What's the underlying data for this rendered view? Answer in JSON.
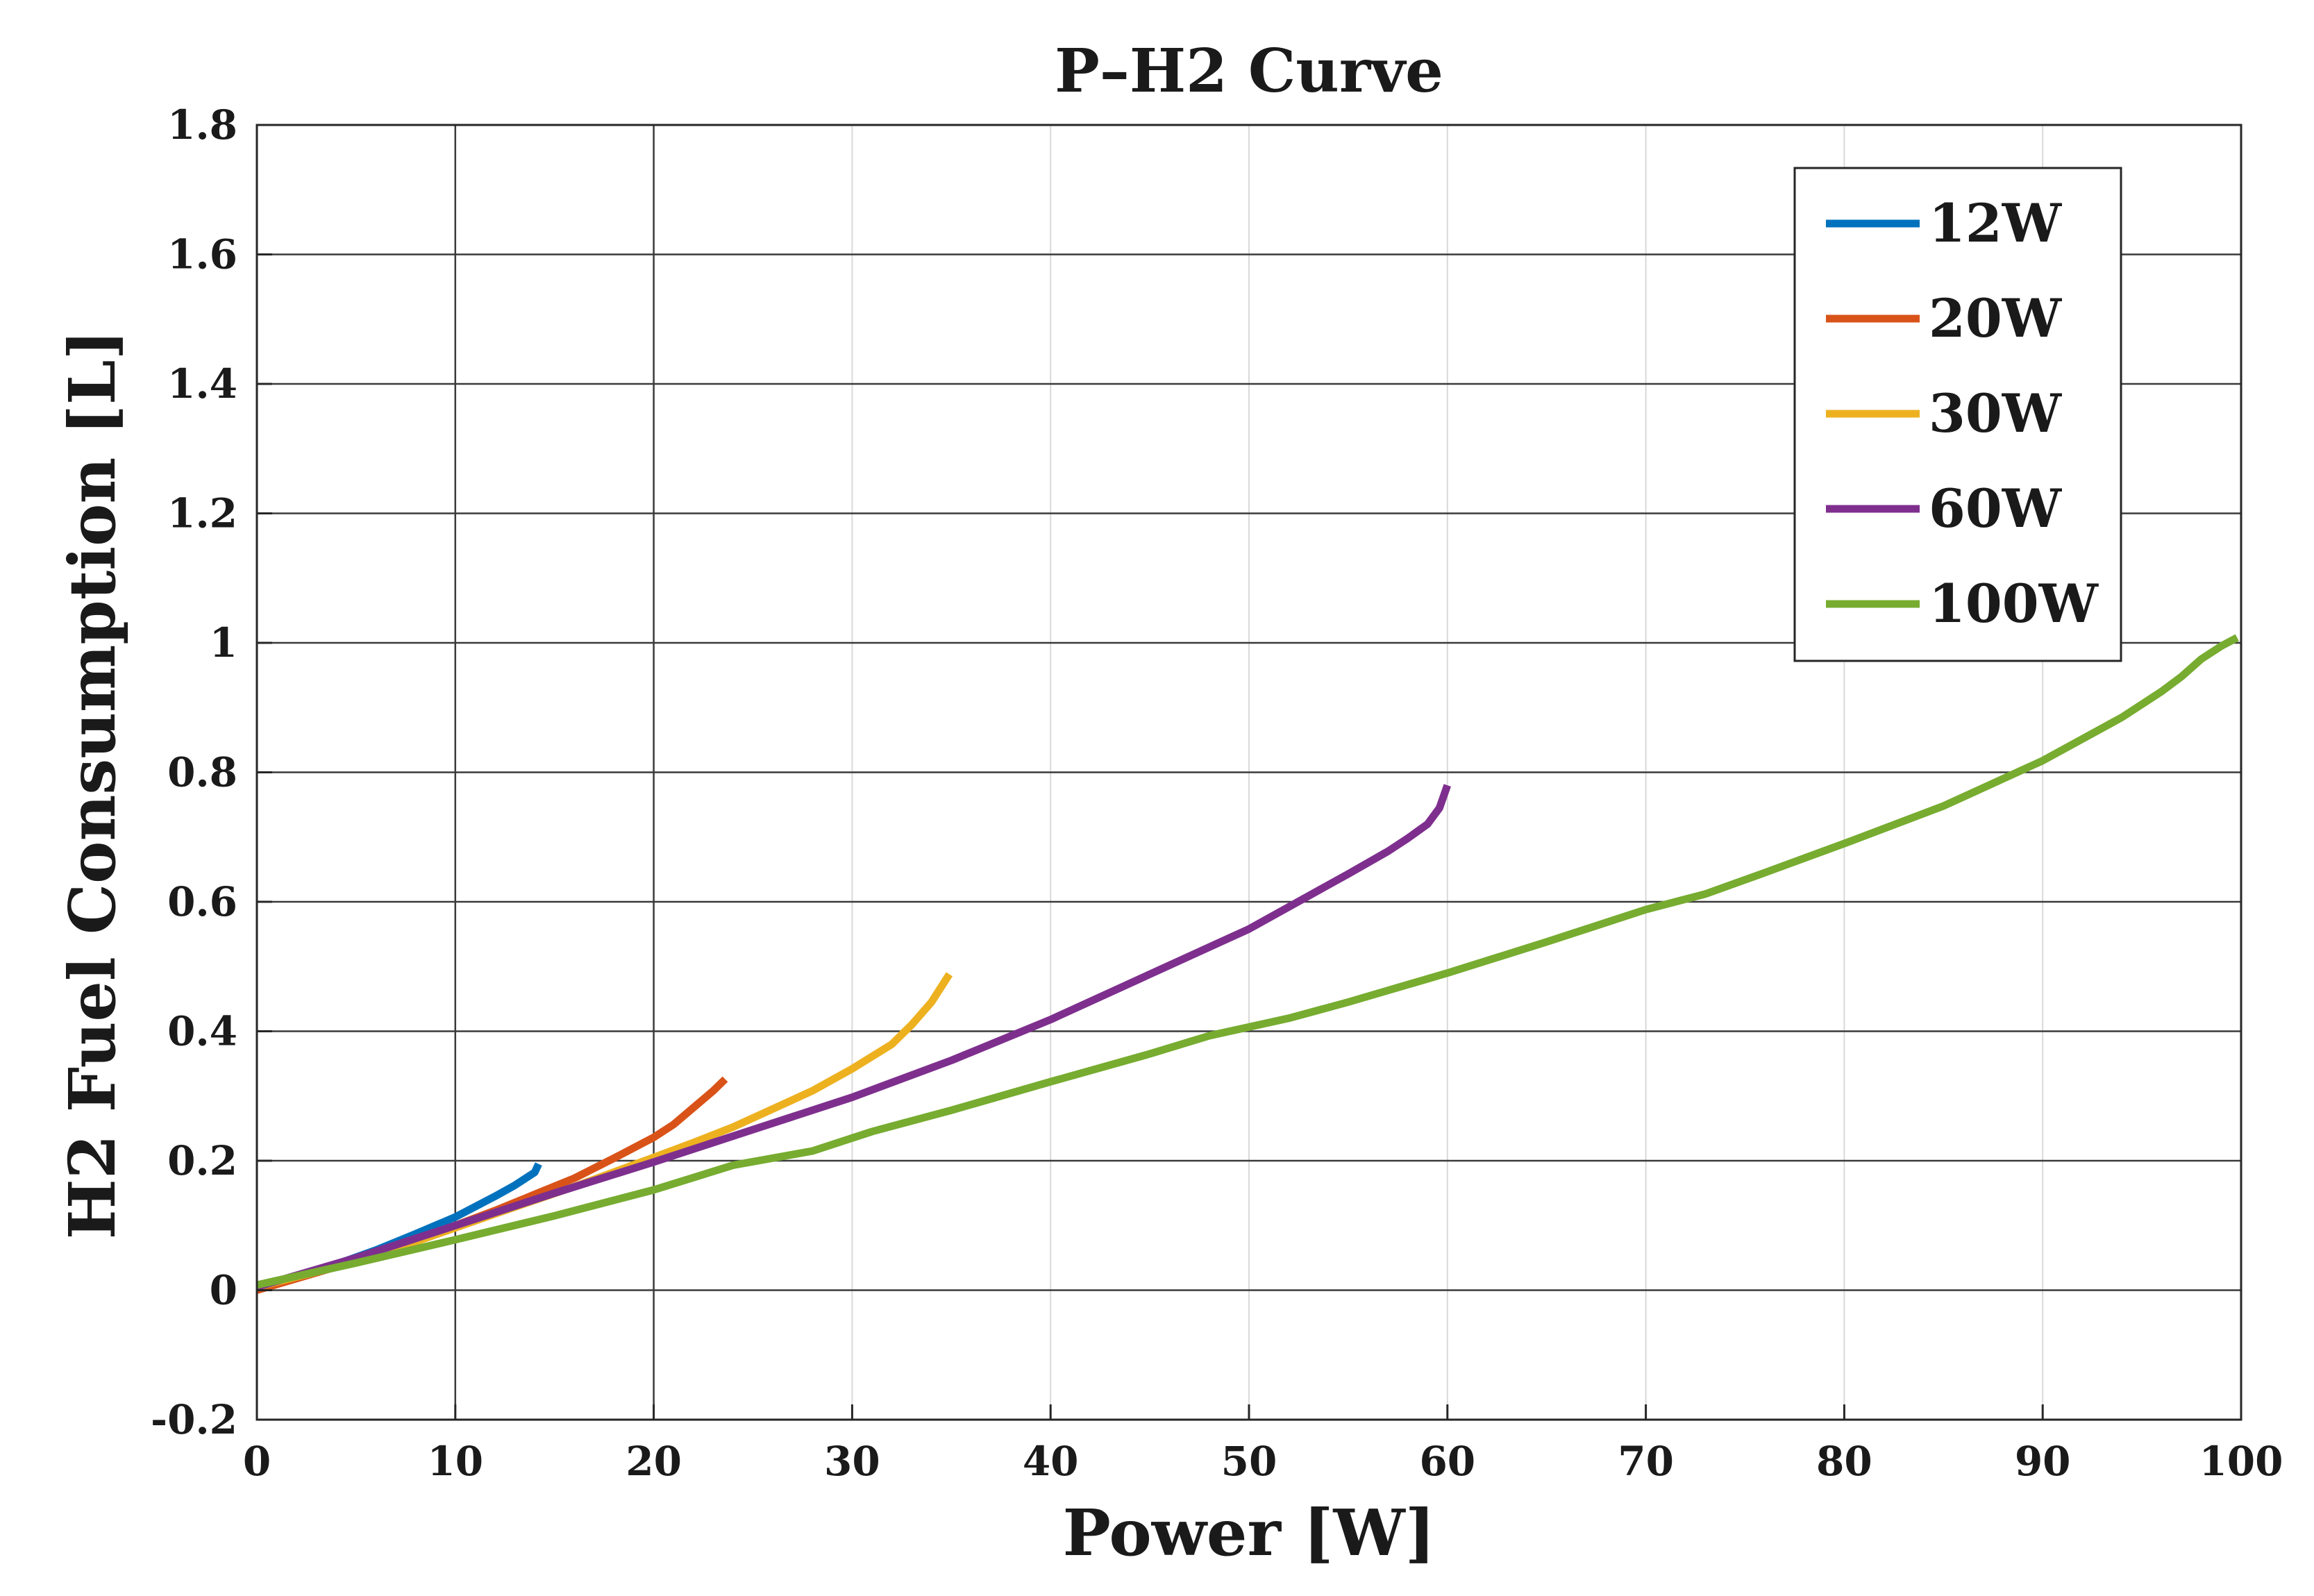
{
  "chart_data": {
    "type": "line",
    "title": "P–H2 Curve",
    "xlabel": "Power [W]",
    "ylabel": "H2 Fuel Consumption [L]",
    "xlim": [
      0,
      100
    ],
    "ylim": [
      -0.2,
      1.8
    ],
    "xticks": [
      0,
      10,
      20,
      30,
      40,
      50,
      60,
      70,
      80,
      90,
      100
    ],
    "xtick_labels": [
      "0",
      "10",
      "20",
      "30",
      "40",
      "50",
      "60",
      "70",
      "80",
      "90",
      "100"
    ],
    "yticks": [
      -0.2,
      0,
      0.2,
      0.4,
      0.6,
      0.8,
      1,
      1.2,
      1.4,
      1.6,
      1.8
    ],
    "ytick_labels": [
      "-0.2",
      "0",
      "0.2",
      "0.4",
      "0.6",
      "0.8",
      "1",
      "1.2",
      "1.4",
      "1.6",
      "1.8"
    ],
    "grid": true,
    "legend_position": "top-right",
    "series": [
      {
        "name": "12W",
        "color": "#0072BD",
        "x": [
          0,
          2,
          4,
          6,
          8,
          10,
          12,
          13,
          14,
          14.2
        ],
        "y": [
          0.005,
          0.02,
          0.04,
          0.062,
          0.087,
          0.113,
          0.145,
          0.162,
          0.182,
          0.195
        ]
      },
      {
        "name": "20W",
        "color": "#D95319",
        "x": [
          0,
          2,
          4,
          6,
          8,
          10,
          12,
          14,
          16,
          18,
          20,
          21,
          22,
          23,
          23.6
        ],
        "y": [
          0.0,
          0.018,
          0.036,
          0.056,
          0.077,
          0.1,
          0.123,
          0.148,
          0.173,
          0.204,
          0.236,
          0.256,
          0.282,
          0.308,
          0.326
        ]
      },
      {
        "name": "30W",
        "color": "#EDB120",
        "x": [
          0,
          4,
          8,
          12,
          16,
          20,
          22,
          24,
          26,
          28,
          30,
          32,
          33,
          34,
          34.9
        ],
        "y": [
          0.005,
          0.036,
          0.075,
          0.118,
          0.16,
          0.205,
          0.228,
          0.252,
          0.28,
          0.308,
          0.342,
          0.38,
          0.41,
          0.445,
          0.488
        ]
      },
      {
        "name": "60W",
        "color": "#7E2F8E",
        "x": [
          0,
          5,
          10,
          15,
          20,
          25,
          30,
          35,
          40,
          45,
          50,
          55,
          57,
          58,
          59,
          59.6,
          60
        ],
        "y": [
          0.005,
          0.05,
          0.1,
          0.15,
          0.198,
          0.248,
          0.298,
          0.355,
          0.418,
          0.488,
          0.558,
          0.643,
          0.678,
          0.698,
          0.72,
          0.745,
          0.78
        ]
      },
      {
        "name": "100W",
        "color": "#77AC30",
        "x": [
          0,
          5,
          10,
          15,
          20,
          24,
          28,
          31,
          35,
          40,
          45,
          48,
          52,
          55,
          60,
          65,
          70,
          73,
          76,
          80,
          85,
          90,
          94,
          96,
          97,
          98,
          99,
          99.8
        ],
        "y": [
          0.008,
          0.042,
          0.078,
          0.115,
          0.155,
          0.193,
          0.215,
          0.245,
          0.278,
          0.322,
          0.365,
          0.393,
          0.42,
          0.445,
          0.49,
          0.538,
          0.588,
          0.612,
          0.645,
          0.69,
          0.748,
          0.818,
          0.885,
          0.925,
          0.948,
          0.975,
          0.995,
          1.008
        ]
      }
    ]
  }
}
